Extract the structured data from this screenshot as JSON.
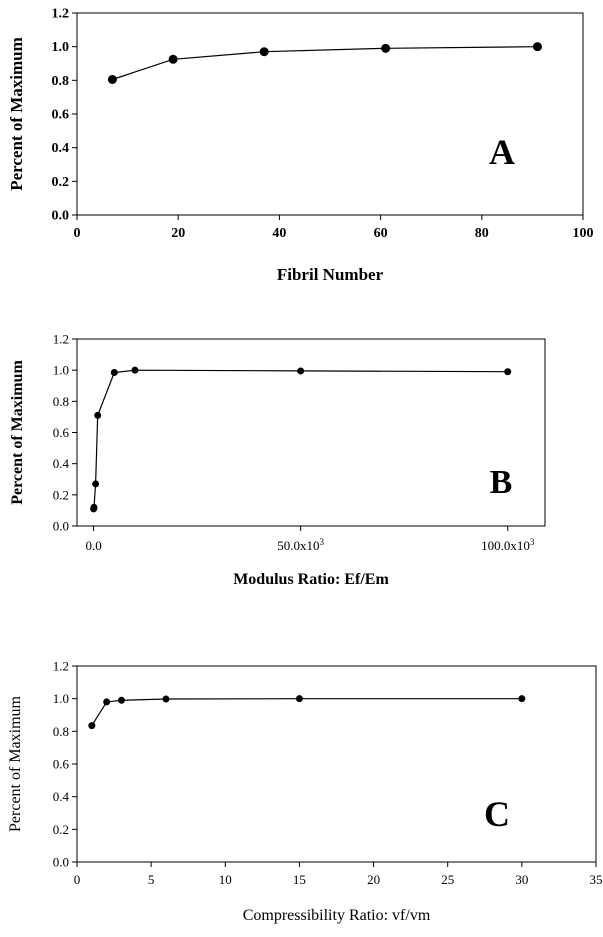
{
  "chart_data": [
    {
      "type": "line",
      "panel_letter": "A",
      "xlabel": "Fibril Number",
      "ylabel": "Percent of Maximum",
      "xlim": [
        0,
        100
      ],
      "ylim": [
        0,
        1.2
      ],
      "x_ticks": [
        0,
        20,
        40,
        60,
        80,
        100
      ],
      "x_tick_labels": [
        "0",
        "20",
        "40",
        "60",
        "80",
        "100"
      ],
      "y_ticks": [
        0,
        0.2,
        0.4,
        0.6,
        0.8,
        1.0,
        1.2
      ],
      "y_tick_labels": [
        "0.0",
        "0.2",
        "0.4",
        "0.6",
        "0.8",
        "1.0",
        "1.2"
      ],
      "x": [
        7,
        19,
        37,
        61,
        91
      ],
      "y": [
        0.805,
        0.925,
        0.97,
        0.99,
        1.0
      ],
      "grid": false,
      "legend": "none",
      "color": "#000000"
    },
    {
      "type": "line",
      "panel_letter": "B",
      "xlabel": "Modulus Ratio: Ef/Em",
      "ylabel": "Percent of Maximum",
      "xlim": [
        -4000,
        109000
      ],
      "ylim": [
        0,
        1.2
      ],
      "x_ticks": [
        0,
        50000,
        100000
      ],
      "x_tick_labels": [
        {
          "base": "0.0",
          "exp": ""
        },
        {
          "base": "50.0x10",
          "exp": "3"
        },
        {
          "base": "100.0x10",
          "exp": "3"
        }
      ],
      "y_ticks": [
        0,
        0.2,
        0.4,
        0.6,
        0.8,
        1.0,
        1.2
      ],
      "y_tick_labels": [
        "0.0",
        "0.2",
        "0.4",
        "0.6",
        "0.8",
        "1.0",
        "1.2"
      ],
      "x": [
        10,
        100,
        500,
        1000,
        5000,
        10000,
        50000,
        100000
      ],
      "y": [
        0.11,
        0.12,
        0.27,
        0.71,
        0.985,
        1.0,
        0.995,
        0.99
      ],
      "grid": false,
      "legend": "none",
      "color": "#000000"
    },
    {
      "type": "line",
      "panel_letter": "C",
      "xlabel": "Compressibility Ratio: vf/vm",
      "ylabel": "Percent of Maximum",
      "xlim": [
        0,
        35
      ],
      "ylim": [
        0,
        1.2
      ],
      "x_ticks": [
        0,
        5,
        10,
        15,
        20,
        25,
        30,
        35
      ],
      "x_tick_labels": [
        "0",
        "5",
        "10",
        "15",
        "20",
        "25",
        "30",
        "35"
      ],
      "y_ticks": [
        0,
        0.2,
        0.4,
        0.6,
        0.8,
        1.0,
        1.2
      ],
      "y_tick_labels": [
        "0.0",
        "0.2",
        "0.4",
        "0.6",
        "0.8",
        "1.0",
        "1.2"
      ],
      "x": [
        1,
        2,
        3,
        6,
        15,
        30
      ],
      "y": [
        0.835,
        0.98,
        0.99,
        0.998,
        1.0,
        1.0
      ],
      "grid": false,
      "legend": "none",
      "color": "#000000"
    }
  ]
}
